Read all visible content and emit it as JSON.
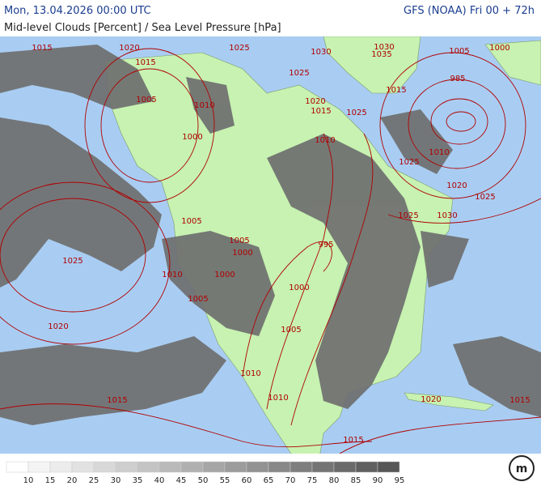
{
  "header": {
    "title": "Mon, 13.04.2026 00:00 UTC",
    "model": "GFS (NOAA) Fri 00 + 72h",
    "subtitle": "Mid-level Clouds [Percent] / Sea Level Pressure [hPa]"
  },
  "legend": [
    {
      "label": 10,
      "color": "#ffffff"
    },
    {
      "label": 15,
      "color": "#f4f4f4"
    },
    {
      "label": 20,
      "color": "#ececec"
    },
    {
      "label": 25,
      "color": "#e2e2e2"
    },
    {
      "label": 30,
      "color": "#d8d8d8"
    },
    {
      "label": 35,
      "color": "#cecece"
    },
    {
      "label": 40,
      "color": "#c4c4c4"
    },
    {
      "label": 45,
      "color": "#bababa"
    },
    {
      "label": 50,
      "color": "#b0b0b0"
    },
    {
      "label": 55,
      "color": "#a6a6a6"
    },
    {
      "label": 60,
      "color": "#9c9c9c"
    },
    {
      "label": 65,
      "color": "#929292"
    },
    {
      "label": 70,
      "color": "#888888"
    },
    {
      "label": 75,
      "color": "#7e7e7e"
    },
    {
      "label": 80,
      "color": "#747474"
    },
    {
      "label": 85,
      "color": "#6a6a6a"
    },
    {
      "label": 90,
      "color": "#606060"
    },
    {
      "label": 95,
      "color": "#565656"
    }
  ],
  "isobar_labels": [
    1015,
    1020,
    1015,
    1025,
    1030,
    1030,
    1035,
    1005,
    1000,
    985,
    1015,
    1025,
    1020,
    1015,
    1025,
    1005,
    1010,
    1000,
    1010,
    1010,
    1025,
    1020,
    1025,
    1025,
    1030,
    1005,
    1005,
    995,
    1000,
    1025,
    1010,
    1000,
    1000,
    1005,
    1020,
    1005,
    1010,
    1015,
    1010,
    1020,
    1015,
    1015
  ]
}
